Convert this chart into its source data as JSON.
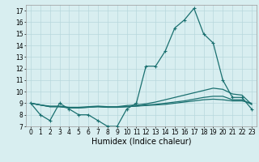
{
  "xlabel": "Humidex (Indice chaleur)",
  "x": [
    0,
    1,
    2,
    3,
    4,
    5,
    6,
    7,
    8,
    9,
    10,
    11,
    12,
    13,
    14,
    15,
    16,
    17,
    18,
    19,
    20,
    21,
    22,
    23
  ],
  "main_y": [
    9,
    8,
    7.5,
    9,
    8.5,
    8,
    8,
    7.5,
    7,
    7,
    8.5,
    9,
    12.2,
    12.2,
    13.5,
    15.5,
    16.2,
    17.2,
    15,
    14.2,
    11,
    9.5,
    9.5,
    8.5
  ],
  "flat1_y": [
    9,
    8.85,
    8.7,
    8.7,
    8.6,
    8.6,
    8.65,
    8.7,
    8.65,
    8.65,
    8.7,
    8.75,
    8.8,
    8.85,
    8.9,
    9.0,
    9.1,
    9.2,
    9.3,
    9.35,
    9.3,
    9.2,
    9.2,
    9.0
  ],
  "flat2_y": [
    9,
    8.85,
    8.7,
    8.7,
    8.6,
    8.6,
    8.65,
    8.7,
    8.65,
    8.65,
    8.7,
    8.75,
    8.85,
    8.9,
    9.0,
    9.1,
    9.2,
    9.35,
    9.5,
    9.6,
    9.6,
    9.3,
    9.3,
    8.9
  ],
  "flat3_y": [
    9,
    8.85,
    8.75,
    8.75,
    8.65,
    8.65,
    8.7,
    8.75,
    8.7,
    8.7,
    8.8,
    8.85,
    8.95,
    9.1,
    9.3,
    9.5,
    9.7,
    9.9,
    10.1,
    10.3,
    10.2,
    9.8,
    9.7,
    8.9
  ],
  "bg_color": "#d8eef0",
  "grid_color": "#b8d8dc",
  "line_color": "#1a7070",
  "ylim": [
    7,
    17.5
  ],
  "xlim": [
    -0.5,
    23.5
  ],
  "yticks": [
    7,
    8,
    9,
    10,
    11,
    12,
    13,
    14,
    15,
    16,
    17
  ],
  "xtick_labels": [
    "0",
    "1",
    "2",
    "3",
    "4",
    "5",
    "6",
    "7",
    "8",
    "9",
    "10",
    "11",
    "12",
    "13",
    "14",
    "15",
    "16",
    "17",
    "18",
    "19",
    "20",
    "21",
    "22",
    "23"
  ],
  "tick_fontsize": 5.5,
  "label_fontsize": 7
}
